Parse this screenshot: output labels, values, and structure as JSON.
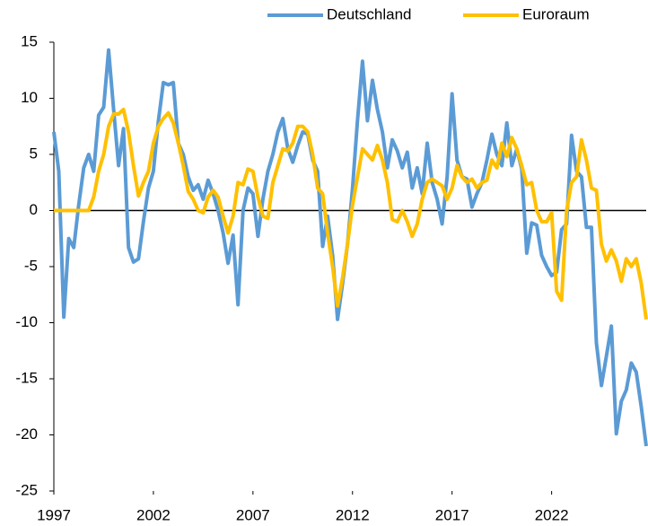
{
  "chart_data": {
    "type": "line",
    "x": [
      1997,
      1997.25,
      1997.5,
      1997.75,
      1998,
      1998.25,
      1998.5,
      1998.75,
      1999,
      1999.25,
      1999.5,
      1999.75,
      2000,
      2000.25,
      2000.5,
      2000.75,
      2001,
      2001.25,
      2001.5,
      2001.75,
      2002,
      2002.25,
      2002.5,
      2002.75,
      2003,
      2003.25,
      2003.5,
      2003.75,
      2004,
      2004.25,
      2004.5,
      2004.75,
      2005,
      2005.25,
      2005.5,
      2005.75,
      2006,
      2006.25,
      2006.5,
      2006.75,
      2007,
      2007.25,
      2007.5,
      2007.75,
      2008,
      2008.25,
      2008.5,
      2008.75,
      2009,
      2009.25,
      2009.5,
      2009.75,
      2010,
      2010.25,
      2010.5,
      2010.75,
      2011,
      2011.25,
      2011.5,
      2011.75,
      2012,
      2012.25,
      2012.5,
      2012.75,
      2013,
      2013.25,
      2013.5,
      2013.75,
      2014,
      2014.25,
      2014.5,
      2014.75,
      2015,
      2015.25,
      2015.5,
      2015.75,
      2016,
      2016.25,
      2016.5,
      2016.75,
      2017,
      2017.25,
      2017.5,
      2017.75,
      2018,
      2018.25,
      2018.5,
      2018.75,
      2019,
      2019.25,
      2019.5,
      2019.75,
      2020,
      2020.25,
      2020.5,
      2020.75,
      2021,
      2021.25,
      2021.5,
      2021.75,
      2022,
      2022.25,
      2022.5,
      2022.75,
      2023,
      2023.25,
      2023.5,
      2023.75,
      2024,
      2024.25,
      2024.5,
      2024.75,
      2025,
      2025.25,
      2025.5,
      2025.75,
      2026,
      2026.25,
      2026.5,
      2026.75
    ],
    "series": [
      {
        "name": "Deutschland",
        "color": "#5b9bd5",
        "values": [
          7,
          3.5,
          -9.5,
          -2.5,
          -3.3,
          0.5,
          3.8,
          5,
          3.5,
          8.5,
          9.2,
          14.3,
          9,
          4,
          7.3,
          -3.3,
          -4.6,
          -4.3,
          -1,
          2,
          3.5,
          8,
          11.4,
          11.2,
          11.4,
          6,
          5,
          3,
          1.8,
          2.3,
          1,
          2.7,
          1.5,
          0,
          -2,
          -4.7,
          -2.2,
          -8.4,
          0,
          2,
          1.5,
          -2.3,
          1,
          3.5,
          5,
          7,
          8.2,
          5.5,
          4.3,
          5.8,
          7,
          6.8,
          4.5,
          3.5,
          -3.2,
          -0.5,
          -4,
          -9.7,
          -6.5,
          -3,
          2,
          8,
          13.3,
          8,
          11.6,
          9,
          7,
          3.8,
          6.3,
          5.3,
          3.8,
          5.2,
          2,
          3.8,
          1.5,
          6,
          2.5,
          1,
          -1.2,
          3,
          10.4,
          4.5,
          3,
          2.8,
          0.3,
          1.5,
          2.5,
          4.5,
          6.8,
          5,
          4,
          7.8,
          4,
          5.5,
          3.7,
          -3.8,
          -1.1,
          -1.3,
          -4,
          -5,
          -5.8,
          -5.5,
          -1.7,
          -1.2,
          6.7,
          3.5,
          3,
          -1.5,
          -1.5,
          -11.8,
          -15.6,
          -13,
          -10.3,
          -19.9,
          -17,
          -16,
          -13.6,
          -14.4,
          -17.5,
          -21
        ]
      },
      {
        "name": "Euroraum",
        "color": "#ffc000",
        "values": [
          0,
          0,
          0,
          0,
          0,
          0,
          0,
          0,
          1.2,
          3.5,
          5,
          7.5,
          8.6,
          8.6,
          9,
          7,
          4,
          1.3,
          2.5,
          3.5,
          6,
          7.5,
          8.2,
          8.7,
          7.8,
          6,
          4,
          1.7,
          1,
          0,
          -0.2,
          1.2,
          1.8,
          1.2,
          -0.5,
          -2,
          -0.5,
          2.5,
          2.3,
          3.7,
          3.5,
          1.2,
          -0.5,
          -0.7,
          2.5,
          4,
          5.5,
          5.3,
          6,
          7.5,
          7.5,
          7,
          5,
          2,
          1.5,
          -2,
          -5,
          -8.5,
          -6,
          -3,
          0.5,
          3,
          5.5,
          5,
          4.5,
          5.8,
          4.5,
          2.5,
          -0.8,
          -1,
          0,
          -1,
          -2.3,
          -1.2,
          1,
          2.5,
          2.8,
          2.5,
          2.2,
          1,
          2,
          4,
          3,
          2.5,
          2.8,
          2,
          2.5,
          2.7,
          4.5,
          3.8,
          6,
          4.8,
          6.5,
          5.5,
          4,
          2.3,
          2.5,
          0,
          -1,
          -1,
          -0.2,
          -7.2,
          -8,
          0,
          2.5,
          3,
          6.3,
          4.5,
          2,
          1.8,
          -3,
          -4.5,
          -3.5,
          -4.5,
          -6.3,
          -4.3,
          -5,
          -4.3,
          -6.5,
          -9.7
        ]
      }
    ],
    "xlim": [
      1997,
      2026.75
    ],
    "xticks": [
      1997,
      2002,
      2007,
      2012,
      2017,
      2022
    ],
    "ylim": [
      -25,
      15
    ],
    "yticks": [
      -25,
      -20,
      -15,
      -10,
      -5,
      0,
      5,
      10,
      15
    ],
    "legend": "top"
  }
}
